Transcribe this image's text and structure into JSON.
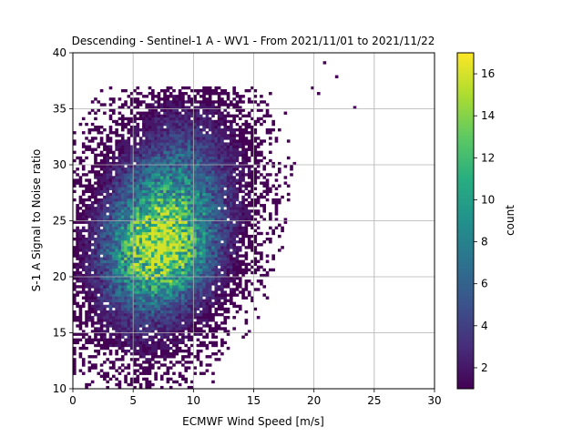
{
  "chart_data": {
    "type": "heatmap",
    "title": "Descending - Sentinel-1 A - WV1 - From 2021/11/01 to 2021/11/22",
    "xlabel": "ECMWF Wind Speed [m/s]",
    "ylabel": "S-1 A Signal to Noise ratio",
    "xlim": [
      0,
      30
    ],
    "ylim": [
      10,
      40
    ],
    "xticks": [
      "0",
      "5",
      "10",
      "15",
      "20",
      "25",
      "30"
    ],
    "yticks": [
      "10",
      "15",
      "20",
      "25",
      "30",
      "35",
      "40"
    ],
    "grid": true,
    "bin_size": {
      "x": 0.25,
      "y": 0.25
    },
    "colormap": "viridis",
    "colorbar": {
      "label": "count",
      "range": [
        1,
        17
      ],
      "ticks": [
        "2",
        "4",
        "6",
        "8",
        "10",
        "12",
        "14",
        "16"
      ]
    },
    "density_peak": {
      "x": 7.5,
      "y": 22.0,
      "count": 16
    },
    "outlier_bins": [
      {
        "x": 20.8,
        "y": 39.2,
        "count": 1
      },
      {
        "x": 21.8,
        "y": 37.9,
        "count": 1
      },
      {
        "x": 23.3,
        "y": 35.2,
        "count": 1
      },
      {
        "x": 19.8,
        "y": 36.8,
        "count": 1
      },
      {
        "x": 20.3,
        "y": 36.3,
        "count": 1
      },
      {
        "x": 17.0,
        "y": 33.2,
        "count": 1
      },
      {
        "x": 17.5,
        "y": 29.8,
        "count": 1
      },
      {
        "x": 17.0,
        "y": 26.5,
        "count": 1
      },
      {
        "x": 16.8,
        "y": 27.3,
        "count": 1
      },
      {
        "x": 18.3,
        "y": 30.0,
        "count": 1
      },
      {
        "x": 1.3,
        "y": 12.3,
        "count": 1
      },
      {
        "x": 0.8,
        "y": 11.3,
        "count": 1
      },
      {
        "x": 3.5,
        "y": 10.8,
        "count": 1
      }
    ]
  }
}
